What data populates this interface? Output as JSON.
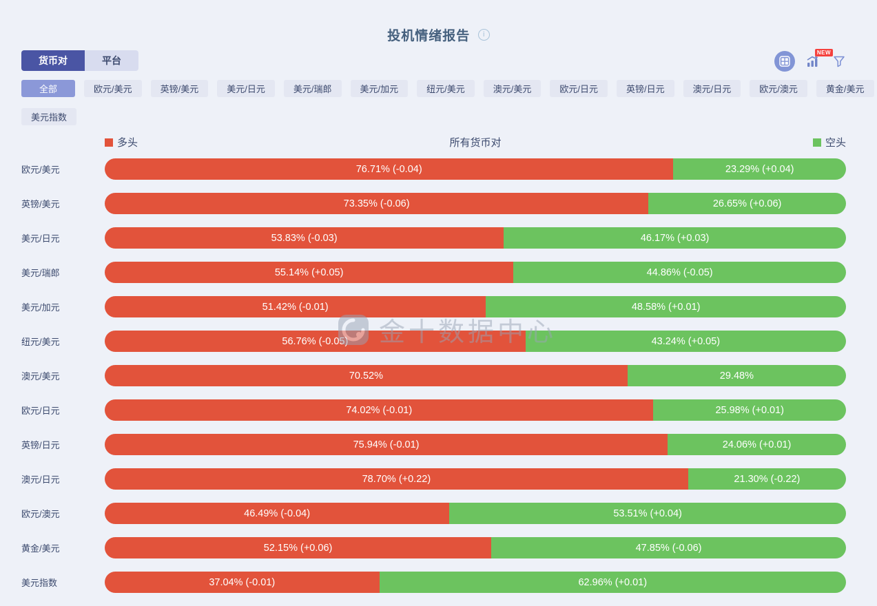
{
  "header": {
    "title": "投机情绪报告",
    "info_glyph": "i"
  },
  "tabs": [
    {
      "name": "currency-pairs",
      "label": "货币对",
      "active": true
    },
    {
      "name": "platform",
      "label": "平台",
      "active": false
    }
  ],
  "toolbar": {
    "grid_button_icon": "dashboard-grid-icon",
    "chart_button_icon": "trend-chart-icon",
    "badge": "NEW",
    "funnel_button_icon": "filter-funnel-icon"
  },
  "filters": {
    "rows": [
      [
        {
          "label": "全部",
          "active": true
        },
        {
          "label": "欧元/美元",
          "active": false
        },
        {
          "label": "英镑/美元",
          "active": false
        },
        {
          "label": "美元/日元",
          "active": false
        },
        {
          "label": "美元/瑞郎",
          "active": false
        },
        {
          "label": "美元/加元",
          "active": false
        },
        {
          "label": "纽元/美元",
          "active": false
        },
        {
          "label": "澳元/美元",
          "active": false
        },
        {
          "label": "欧元/日元",
          "active": false
        },
        {
          "label": "英镑/日元",
          "active": false
        },
        {
          "label": "澳元/日元",
          "active": false
        },
        {
          "label": "欧元/澳元",
          "active": false
        },
        {
          "label": "黄金/美元",
          "active": false
        }
      ],
      [
        {
          "label": "美元指数",
          "active": false
        }
      ]
    ]
  },
  "colors": {
    "long": "#e2533b",
    "short": "#6cc35f",
    "tab_active": "#4a55a4",
    "chip_active": "#8b98d8",
    "badge": "#f5413d",
    "background": "#eef1f8"
  },
  "chart_data": {
    "type": "bar",
    "orientation": "horizontal-stacked",
    "title": "所有货币对",
    "xlim": [
      0,
      100
    ],
    "legend": [
      {
        "name": "多头",
        "color": "#e2533b",
        "position": "left"
      },
      {
        "name": "空头",
        "color": "#6cc35f",
        "position": "right"
      }
    ],
    "categories": [
      "欧元/美元",
      "英镑/美元",
      "美元/日元",
      "美元/瑞郎",
      "美元/加元",
      "纽元/美元",
      "澳元/美元",
      "欧元/日元",
      "英镑/日元",
      "澳元/日元",
      "欧元/澳元",
      "黄金/美元",
      "美元指数"
    ],
    "series": [
      {
        "name": "多头",
        "values": [
          76.71,
          73.35,
          53.83,
          55.14,
          51.42,
          56.76,
          70.52,
          74.02,
          75.94,
          78.7,
          46.49,
          52.15,
          37.04
        ],
        "labels": [
          "76.71% (-0.04)",
          "73.35% (-0.06)",
          "53.83% (-0.03)",
          "55.14% (+0.05)",
          "51.42% (-0.01)",
          "56.76% (-0.05)",
          "70.52%",
          "74.02% (-0.01)",
          "75.94% (-0.01)",
          "78.70% (+0.22)",
          "46.49% (-0.04)",
          "52.15% (+0.06)",
          "37.04% (-0.01)"
        ]
      },
      {
        "name": "空头",
        "values": [
          23.29,
          26.65,
          46.17,
          44.86,
          48.58,
          43.24,
          29.48,
          25.98,
          24.06,
          21.3,
          53.51,
          47.85,
          62.96
        ],
        "labels": [
          "23.29% (+0.04)",
          "26.65% (+0.06)",
          "46.17% (+0.03)",
          "44.86% (-0.05)",
          "48.58% (+0.01)",
          "43.24% (+0.05)",
          "29.48%",
          "25.98% (+0.01)",
          "24.06% (+0.01)",
          "21.30% (-0.22)",
          "53.51% (+0.04)",
          "47.85% (-0.06)",
          "62.96% (+0.01)"
        ]
      }
    ]
  },
  "watermark": {
    "text": "金十数据中心",
    "logo": "jin10-logo-icon"
  }
}
